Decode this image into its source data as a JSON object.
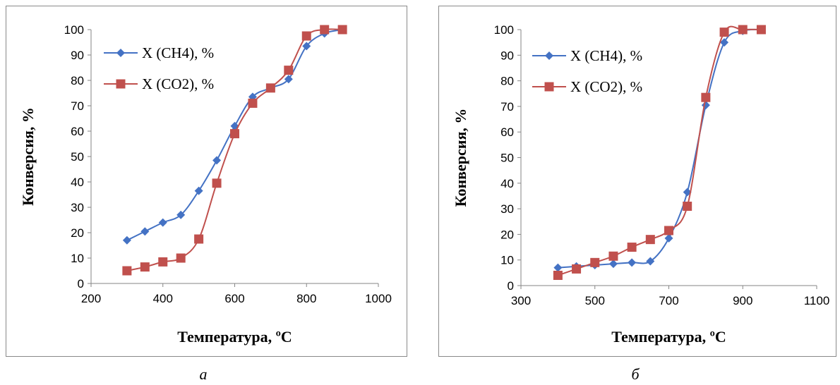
{
  "captions": [
    "а",
    "б"
  ],
  "chart_data": [
    {
      "type": "line",
      "xlabel": "Температура, ºС",
      "ylabel": "Конверсия, %",
      "xlim": [
        200,
        1000
      ],
      "ylim": [
        0,
        100
      ],
      "x_ticks": [
        200,
        400,
        600,
        800,
        1000
      ],
      "y_ticks": [
        0,
        10,
        20,
        30,
        40,
        50,
        60,
        70,
        80,
        90,
        100
      ],
      "legend_position": "top-left",
      "grid": false,
      "series": [
        {
          "name": "X (CH4), %",
          "color": "#4472C4",
          "marker": "diamond",
          "x": [
            300,
            350,
            400,
            450,
            500,
            550,
            600,
            650,
            700,
            750,
            800,
            850,
            900
          ],
          "y": [
            17,
            20.5,
            24,
            27,
            36.5,
            48.5,
            62,
            73.5,
            77,
            80.5,
            93.5,
            98.5,
            100
          ]
        },
        {
          "name": "X (CO2), %",
          "color": "#C0504D",
          "marker": "square",
          "x": [
            300,
            350,
            400,
            450,
            500,
            550,
            600,
            650,
            700,
            750,
            800,
            850,
            900
          ],
          "y": [
            5,
            6.5,
            8.5,
            10,
            17.5,
            39.5,
            59,
            71,
            77,
            84,
            97.5,
            100,
            100
          ]
        }
      ]
    },
    {
      "type": "line",
      "xlabel": "Температура, ºС",
      "ylabel": "Конверсия, %",
      "xlim": [
        300,
        1100
      ],
      "ylim": [
        0,
        100
      ],
      "x_ticks": [
        300,
        500,
        700,
        900,
        1100
      ],
      "y_ticks": [
        0,
        10,
        20,
        30,
        40,
        50,
        60,
        70,
        80,
        90,
        100
      ],
      "legend_position": "top-left",
      "grid": false,
      "series": [
        {
          "name": "X (CH4), %",
          "color": "#4472C4",
          "marker": "diamond",
          "x": [
            400,
            450,
            500,
            550,
            600,
            650,
            700,
            750,
            800,
            850,
            900,
            950
          ],
          "y": [
            7,
            7.5,
            8,
            8.5,
            9,
            9.5,
            18.5,
            36.5,
            70.5,
            95,
            99.5,
            100
          ]
        },
        {
          "name": "X (CO2), %",
          "color": "#C0504D",
          "marker": "square",
          "x": [
            400,
            450,
            500,
            550,
            600,
            650,
            700,
            750,
            800,
            850,
            900,
            950
          ],
          "y": [
            4,
            6.5,
            9,
            11.5,
            15,
            18,
            21.5,
            31,
            73.5,
            99,
            100,
            100
          ]
        }
      ]
    }
  ]
}
